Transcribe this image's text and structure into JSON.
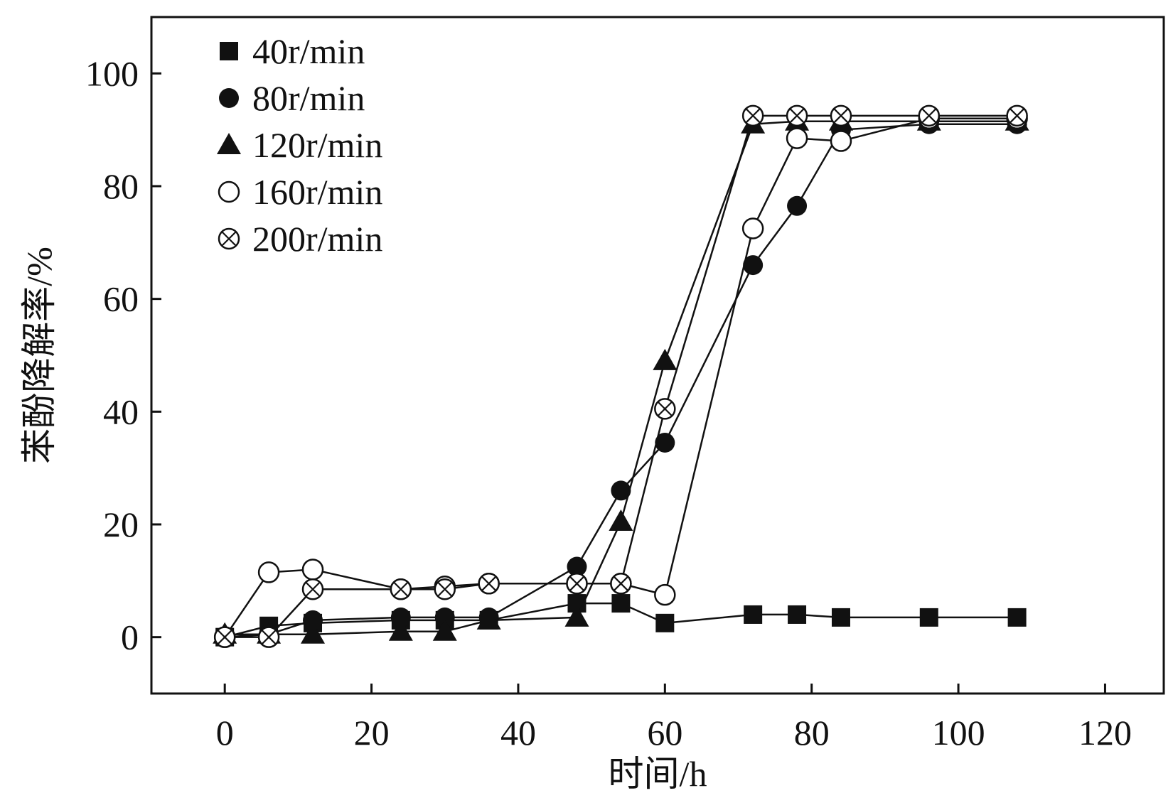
{
  "chart_data": {
    "type": "line",
    "title": "",
    "xlabel": "时间/h",
    "ylabel": "苯酚降解率/%",
    "xlim": [
      -10,
      128
    ],
    "ylim": [
      -10,
      110
    ],
    "xticks": [
      0,
      20,
      40,
      60,
      80,
      100,
      120
    ],
    "yticks": [
      0,
      20,
      40,
      60,
      80,
      100
    ],
    "grid": false,
    "legend_position": "top-left",
    "series": [
      {
        "name": "40r/min",
        "marker": "square-filled",
        "x": [
          0,
          6,
          12,
          24,
          30,
          36,
          48,
          54,
          60,
          72,
          78,
          84,
          96,
          108
        ],
        "y": [
          0,
          2,
          2.5,
          3,
          3,
          3,
          6,
          6,
          2.5,
          4,
          4,
          3.5,
          3.5,
          3.5
        ]
      },
      {
        "name": "80r/min",
        "marker": "circle-filled",
        "x": [
          0,
          6,
          12,
          24,
          30,
          36,
          48,
          54,
          60,
          72,
          78,
          84,
          96,
          108
        ],
        "y": [
          0,
          0.5,
          3,
          3.5,
          3.5,
          3.5,
          12.5,
          26,
          34.5,
          66,
          76.5,
          90,
          91,
          91
        ]
      },
      {
        "name": "120r/min",
        "marker": "triangle-filled",
        "x": [
          0,
          6,
          12,
          24,
          30,
          36,
          48,
          54,
          60,
          72,
          78,
          84,
          96,
          108
        ],
        "y": [
          0.5,
          0.5,
          0.5,
          1,
          1,
          3,
          3.5,
          20.5,
          49,
          91,
          91.5,
          91.5,
          91.5,
          91.5
        ]
      },
      {
        "name": "160r/min",
        "marker": "circle-open",
        "x": [
          0,
          6,
          12,
          24,
          30,
          36,
          48,
          54,
          60,
          72,
          78,
          84,
          96,
          108
        ],
        "y": [
          0,
          11.5,
          12,
          8.5,
          9,
          9.5,
          9.5,
          9.5,
          7.5,
          72.5,
          88.5,
          88,
          92,
          92
        ]
      },
      {
        "name": "200r/min",
        "marker": "circle-x",
        "x": [
          0,
          6,
          12,
          24,
          30,
          36,
          48,
          54,
          60,
          72,
          78,
          84,
          96,
          108
        ],
        "y": [
          0,
          0,
          8.5,
          8.5,
          8.5,
          9.5,
          9.5,
          9.5,
          40.5,
          92.5,
          92.5,
          92.5,
          92.5,
          92.5
        ]
      }
    ]
  }
}
